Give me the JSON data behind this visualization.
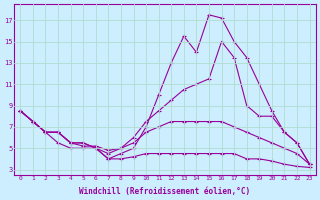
{
  "xlabel": "Windchill (Refroidissement éolien,°C)",
  "background_color": "#cceeff",
  "line_color": "#990099",
  "grid_color": "#b0ddd0",
  "x_ticks": [
    0,
    1,
    2,
    3,
    4,
    5,
    6,
    7,
    8,
    9,
    10,
    11,
    12,
    13,
    14,
    15,
    16,
    17,
    18,
    19,
    20,
    21,
    22,
    23
  ],
  "y_ticks": [
    3,
    5,
    7,
    9,
    11,
    13,
    15,
    17
  ],
  "ylim": [
    2.5,
    18.5
  ],
  "xlim": [
    -0.5,
    23.5
  ],
  "line1_x": [
    0,
    1,
    2,
    3,
    4,
    5,
    6,
    7,
    8,
    9,
    10,
    11,
    12,
    13,
    14,
    15,
    16,
    17,
    18,
    19,
    20,
    21,
    22,
    23
  ],
  "line1_y": [
    8.5,
    7.5,
    6.5,
    6.5,
    5.5,
    5.5,
    5.0,
    4.0,
    4.5,
    5.0,
    7.0,
    10.0,
    13.0,
    15.5,
    14.0,
    17.5,
    17.2,
    15.0,
    13.5,
    11.0,
    8.5,
    6.5,
    5.5,
    3.5
  ],
  "line2_x": [
    0,
    1,
    2,
    3,
    4,
    5,
    6,
    7,
    8,
    9,
    10,
    11,
    12,
    13,
    14,
    15,
    16,
    17,
    18,
    19,
    20,
    21,
    22,
    23
  ],
  "line2_y": [
    8.5,
    7.5,
    6.5,
    6.5,
    5.5,
    5.5,
    5.0,
    4.5,
    5.0,
    6.0,
    7.5,
    8.5,
    9.5,
    10.5,
    11.0,
    11.5,
    15.0,
    13.5,
    9.0,
    8.0,
    8.0,
    6.5,
    5.5,
    3.5
  ],
  "line3_x": [
    0,
    1,
    2,
    3,
    4,
    5,
    6,
    7,
    8,
    9,
    10,
    11,
    12,
    13,
    14,
    15,
    16,
    17,
    18,
    19,
    20,
    21,
    22,
    23
  ],
  "line3_y": [
    8.5,
    7.5,
    6.5,
    6.5,
    5.5,
    5.2,
    5.2,
    4.8,
    5.0,
    5.5,
    6.5,
    7.0,
    7.5,
    7.5,
    7.5,
    7.5,
    7.5,
    7.0,
    6.5,
    6.0,
    5.5,
    5.0,
    4.5,
    3.5
  ],
  "line4_x": [
    0,
    1,
    2,
    3,
    4,
    5,
    6,
    7,
    8,
    9,
    10,
    11,
    12,
    13,
    14,
    15,
    16,
    17,
    18,
    19,
    20,
    21,
    22,
    23
  ],
  "line4_y": [
    8.5,
    7.5,
    6.5,
    5.5,
    5.0,
    5.0,
    5.0,
    4.0,
    4.0,
    4.2,
    4.5,
    4.5,
    4.5,
    4.5,
    4.5,
    4.5,
    4.5,
    4.5,
    4.0,
    4.0,
    3.8,
    3.5,
    3.3,
    3.2
  ]
}
